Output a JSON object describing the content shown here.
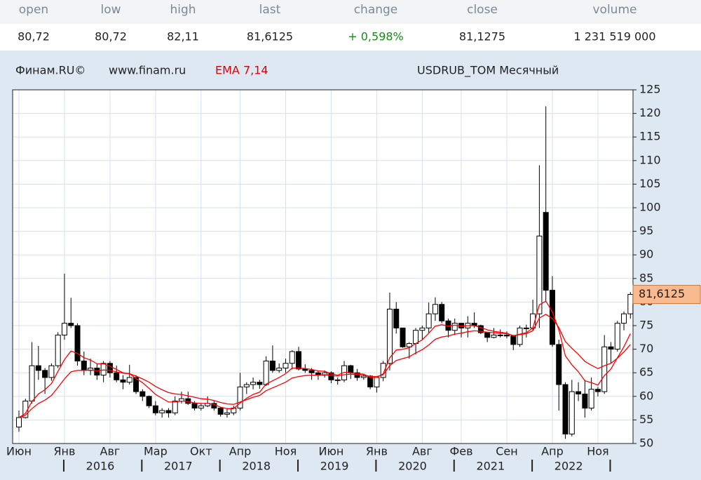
{
  "header": {
    "columns": [
      {
        "label": "open",
        "value": "80,72"
      },
      {
        "label": "low",
        "value": "80,72"
      },
      {
        "label": "high",
        "value": "82,11"
      },
      {
        "label": "last",
        "value": "81,6125"
      },
      {
        "label": "change",
        "value": "+ 0,598%"
      },
      {
        "label": "close",
        "value": "81,1275"
      },
      {
        "label": "volume",
        "value": "1 231 519 000"
      }
    ]
  },
  "chart_data": {
    "type": "candlestick",
    "source": "Финам.RU©",
    "site": "www.finam.ru",
    "indicator": "EMA 7,14",
    "title": "USDRUB_TOM Месячный",
    "categories": [
      "Июн",
      null,
      null,
      null,
      null,
      null,
      null,
      "Янв",
      null,
      null,
      null,
      null,
      null,
      null,
      "Авг",
      null,
      null,
      null,
      null,
      null,
      null,
      "Мар",
      null,
      null,
      null,
      null,
      null,
      null,
      "Окт",
      null,
      null,
      null,
      null,
      null,
      "Апр",
      null,
      null,
      null,
      null,
      null,
      null,
      "Ноя",
      null,
      null,
      null,
      null,
      null,
      null,
      "Июн",
      null,
      null,
      null,
      null,
      null,
      null,
      "Янв",
      null,
      null,
      null,
      null,
      null,
      null,
      "Авг",
      null,
      null,
      null,
      null,
      null,
      "Фев",
      null,
      null,
      null,
      null,
      null,
      null,
      "Сен",
      null,
      null,
      null,
      null,
      null,
      null,
      "Апр",
      null,
      null,
      null,
      null,
      null,
      null,
      "Ноя",
      null,
      null,
      null,
      null,
      null
    ],
    "years": [
      null,
      null,
      null,
      null,
      null,
      null,
      null,
      "2016",
      null,
      null,
      null,
      null,
      null,
      null,
      null,
      null,
      null,
      null,
      null,
      "2017",
      null,
      null,
      null,
      null,
      null,
      null,
      null,
      null,
      null,
      null,
      null,
      "2018",
      null,
      null,
      null,
      null,
      null,
      null,
      null,
      null,
      null,
      null,
      null,
      "2019",
      null,
      null,
      null,
      null,
      null,
      null,
      null,
      null,
      null,
      null,
      null,
      "2020",
      null,
      null,
      null,
      null,
      null,
      null,
      null,
      null,
      null,
      null,
      null,
      "2021",
      null,
      null,
      null,
      null,
      null,
      null,
      null,
      null,
      null,
      null,
      null,
      "2022",
      null,
      null,
      null,
      null,
      null,
      null,
      null,
      null,
      null,
      null,
      null,
      null,
      null,
      null,
      null
    ],
    "open": [
      53.5,
      55.5,
      59,
      66.5,
      65.5,
      64,
      66.5,
      73,
      75.5,
      75,
      67.5,
      65.5,
      66,
      64.5,
      67,
      65,
      63.5,
      63,
      64,
      61,
      60,
      58,
      56.5,
      57,
      56.5,
      59,
      59.5,
      58.5,
      57.5,
      58,
      58.5,
      57.5,
      56.2,
      56.5,
      57.5,
      62,
      62.5,
      63,
      62.5,
      67.5,
      65.5,
      66,
      67,
      69.5,
      65.8,
      65.5,
      65,
      64.5,
      65,
      63.5,
      63.5,
      66.5,
      65,
      64,
      64.3,
      62,
      64,
      67,
      78.5,
      74.5,
      70.5,
      71.2,
      74,
      74.5,
      77.5,
      79.5,
      76,
      74,
      75.5,
      74.5,
      75.5,
      75,
      73.5,
      72.5,
      73,
      73,
      72.8,
      71,
      74.5,
      74.5,
      77.5,
      99,
      82.5,
      71,
      62.5,
      52,
      61,
      60.5,
      57.5,
      61.5,
      61,
      70.5,
      70,
      75.5,
      77.5
    ],
    "high": [
      57,
      59.5,
      71.5,
      70.7,
      66,
      67,
      73.6,
      86,
      80.9,
      75.5,
      69.5,
      68,
      67,
      67.5,
      67.5,
      66.5,
      64.5,
      66.7,
      64.5,
      61.5,
      60.2,
      59,
      57.5,
      57.5,
      60,
      61,
      61,
      59,
      58.5,
      60,
      59,
      57.8,
      57.5,
      58,
      65,
      63,
      64,
      63.5,
      68.5,
      70.8,
      67,
      68,
      69.8,
      70.5,
      66.8,
      66,
      65.5,
      65.5,
      65.3,
      64,
      67.5,
      66.7,
      65.8,
      64.8,
      64.5,
      64,
      67.5,
      82,
      80,
      74.5,
      71.5,
      74.5,
      75,
      79.9,
      81,
      80,
      76.5,
      76.5,
      75.6,
      77,
      77.8,
      75.2,
      73.6,
      74.5,
      74.2,
      73.8,
      73,
      75,
      75.2,
      80.5,
      109,
      121.5,
      85.5,
      72,
      63,
      63.5,
      63,
      63.5,
      64,
      62,
      73,
      71.5,
      76,
      78,
      82.11
    ],
    "low": [
      52.5,
      55.3,
      58.5,
      63.5,
      60.5,
      63.3,
      66,
      72,
      74.5,
      66.5,
      64.5,
      64.5,
      63.5,
      63,
      64,
      63,
      61.5,
      62.5,
      60.5,
      59,
      57.5,
      56,
      55.5,
      55.5,
      56,
      58.5,
      58.2,
      57,
      57,
      57.7,
      57,
      55.7,
      55.5,
      56,
      57,
      60.5,
      61.5,
      61.6,
      62.2,
      65,
      65,
      65,
      65.7,
      65.5,
      65,
      63.5,
      63.5,
      64,
      62.8,
      62.5,
      63,
      63.7,
      63.3,
      63.5,
      61.5,
      60.8,
      63.2,
      65.5,
      73.3,
      70.3,
      68,
      68.9,
      72,
      73.5,
      76,
      75.5,
      72.5,
      73,
      72.5,
      72.5,
      74.5,
      73.2,
      71.5,
      72.3,
      72.5,
      72.3,
      69.8,
      70.5,
      72.5,
      74,
      74.5,
      80,
      70.5,
      57,
      51,
      51.5,
      59,
      55.5,
      57,
      60,
      60.5,
      67,
      69.5,
      74,
      76.5
    ],
    "close": [
      55.5,
      59,
      66.5,
      65.5,
      64,
      66.5,
      73,
      75.5,
      75,
      67.5,
      65.5,
      66,
      64.5,
      67,
      65,
      63.5,
      63,
      64,
      61,
      60,
      58,
      56.5,
      57,
      56.5,
      59,
      59.5,
      58.5,
      57.5,
      58,
      58.5,
      57.5,
      56.2,
      56.5,
      57.5,
      62,
      62.5,
      63,
      62.5,
      67.5,
      65.5,
      66,
      67,
      69.5,
      65.8,
      65.5,
      65,
      64.5,
      65,
      63.5,
      63.5,
      66.5,
      65,
      64,
      64.3,
      62,
      64,
      67,
      78.5,
      74.5,
      70.5,
      71.2,
      74,
      74.5,
      77.5,
      79.5,
      76,
      74,
      75.5,
      74.5,
      75.5,
      75,
      73.5,
      72.5,
      73,
      73,
      72.8,
      71,
      74.5,
      74.5,
      77.5,
      94,
      82.5,
      71,
      62.5,
      52,
      61,
      60.5,
      57.5,
      61.5,
      61,
      70.5,
      70,
      75.5,
      77.5,
      81.6125
    ],
    "series": [
      {
        "name": "EMA 7",
        "color": "#ff0000",
        "values": [
          55.5,
          56.4,
          58.9,
          60.5,
          61.4,
          62.7,
          65.3,
          67.8,
          69.6,
          69.1,
          68.2,
          67.7,
          66.9,
          66.9,
          66.4,
          65.7,
          65.0,
          64.8,
          63.8,
          62.9,
          61.7,
          60.4,
          59.6,
          58.8,
          58.8,
          59.0,
          58.9,
          58.6,
          58.5,
          58.5,
          58.3,
          57.7,
          57.4,
          57.4,
          58.6,
          59.6,
          60.4,
          60.9,
          62.6,
          63.3,
          64.0,
          64.8,
          66.0,
          66.0,
          65.9,
          65.7,
          65.4,
          65.3,
          64.8,
          64.5,
          65.1,
          65.0,
          64.8,
          64.7,
          64.0,
          64.0,
          64.8,
          68.2,
          69.8,
          70.0,
          70.3,
          71.2,
          72.0,
          73.4,
          74.9,
          75.2,
          74.9,
          75.1,
          74.9,
          75.0,
          75.0,
          74.6,
          74.1,
          73.8,
          73.6,
          73.4,
          72.8,
          73.2,
          73.5,
          74.5,
          79.4,
          80.2,
          77.9,
          74.1,
          68.6,
          66.7,
          65.2,
          63.3,
          62.9,
          62.4,
          64.4,
          65.8,
          68.2,
          70.5,
          73.3
        ]
      },
      {
        "name": "EMA 14",
        "color": "#ff0000",
        "values": [
          55.5,
          56.0,
          57.4,
          58.5,
          59.2,
          60.2,
          61.9,
          63.7,
          65.2,
          65.5,
          65.5,
          65.6,
          65.4,
          65.6,
          65.5,
          65.2,
          64.9,
          64.8,
          64.3,
          63.7,
          63.0,
          62.1,
          61.4,
          60.8,
          60.5,
          60.4,
          60.1,
          59.8,
          59.5,
          59.4,
          59.1,
          58.7,
          58.4,
          58.3,
          58.8,
          59.3,
          59.8,
          60.2,
          61.2,
          61.8,
          62.4,
          63.0,
          63.9,
          64.2,
          64.4,
          64.5,
          64.5,
          64.6,
          64.4,
          64.3,
          64.6,
          64.7,
          64.6,
          64.6,
          64.2,
          64.2,
          64.6,
          66.5,
          67.6,
          68.0,
          68.4,
          69.2,
          69.9,
          70.9,
          72.1,
          72.6,
          72.8,
          73.2,
          73.4,
          73.7,
          73.9,
          73.8,
          73.6,
          73.5,
          73.4,
          73.3,
          72.9,
          73.1,
          73.3,
          73.9,
          76.6,
          77.4,
          76.5,
          74.6,
          71.6,
          70.2,
          68.9,
          67.4,
          66.6,
          65.9,
          66.5,
          67.0,
          68.1,
          69.4,
          71.0
        ]
      }
    ],
    "last_price": {
      "value": 81.6125,
      "label": "81,6125"
    },
    "ylim": [
      50,
      125
    ],
    "yticks": [
      50,
      55,
      60,
      65,
      70,
      75,
      80,
      85,
      90,
      95,
      100,
      105,
      110,
      115,
      120,
      125
    ],
    "grid": true,
    "up_color": "#ffffff",
    "down_color": "#000000",
    "marker_color": "#f9b98e"
  }
}
